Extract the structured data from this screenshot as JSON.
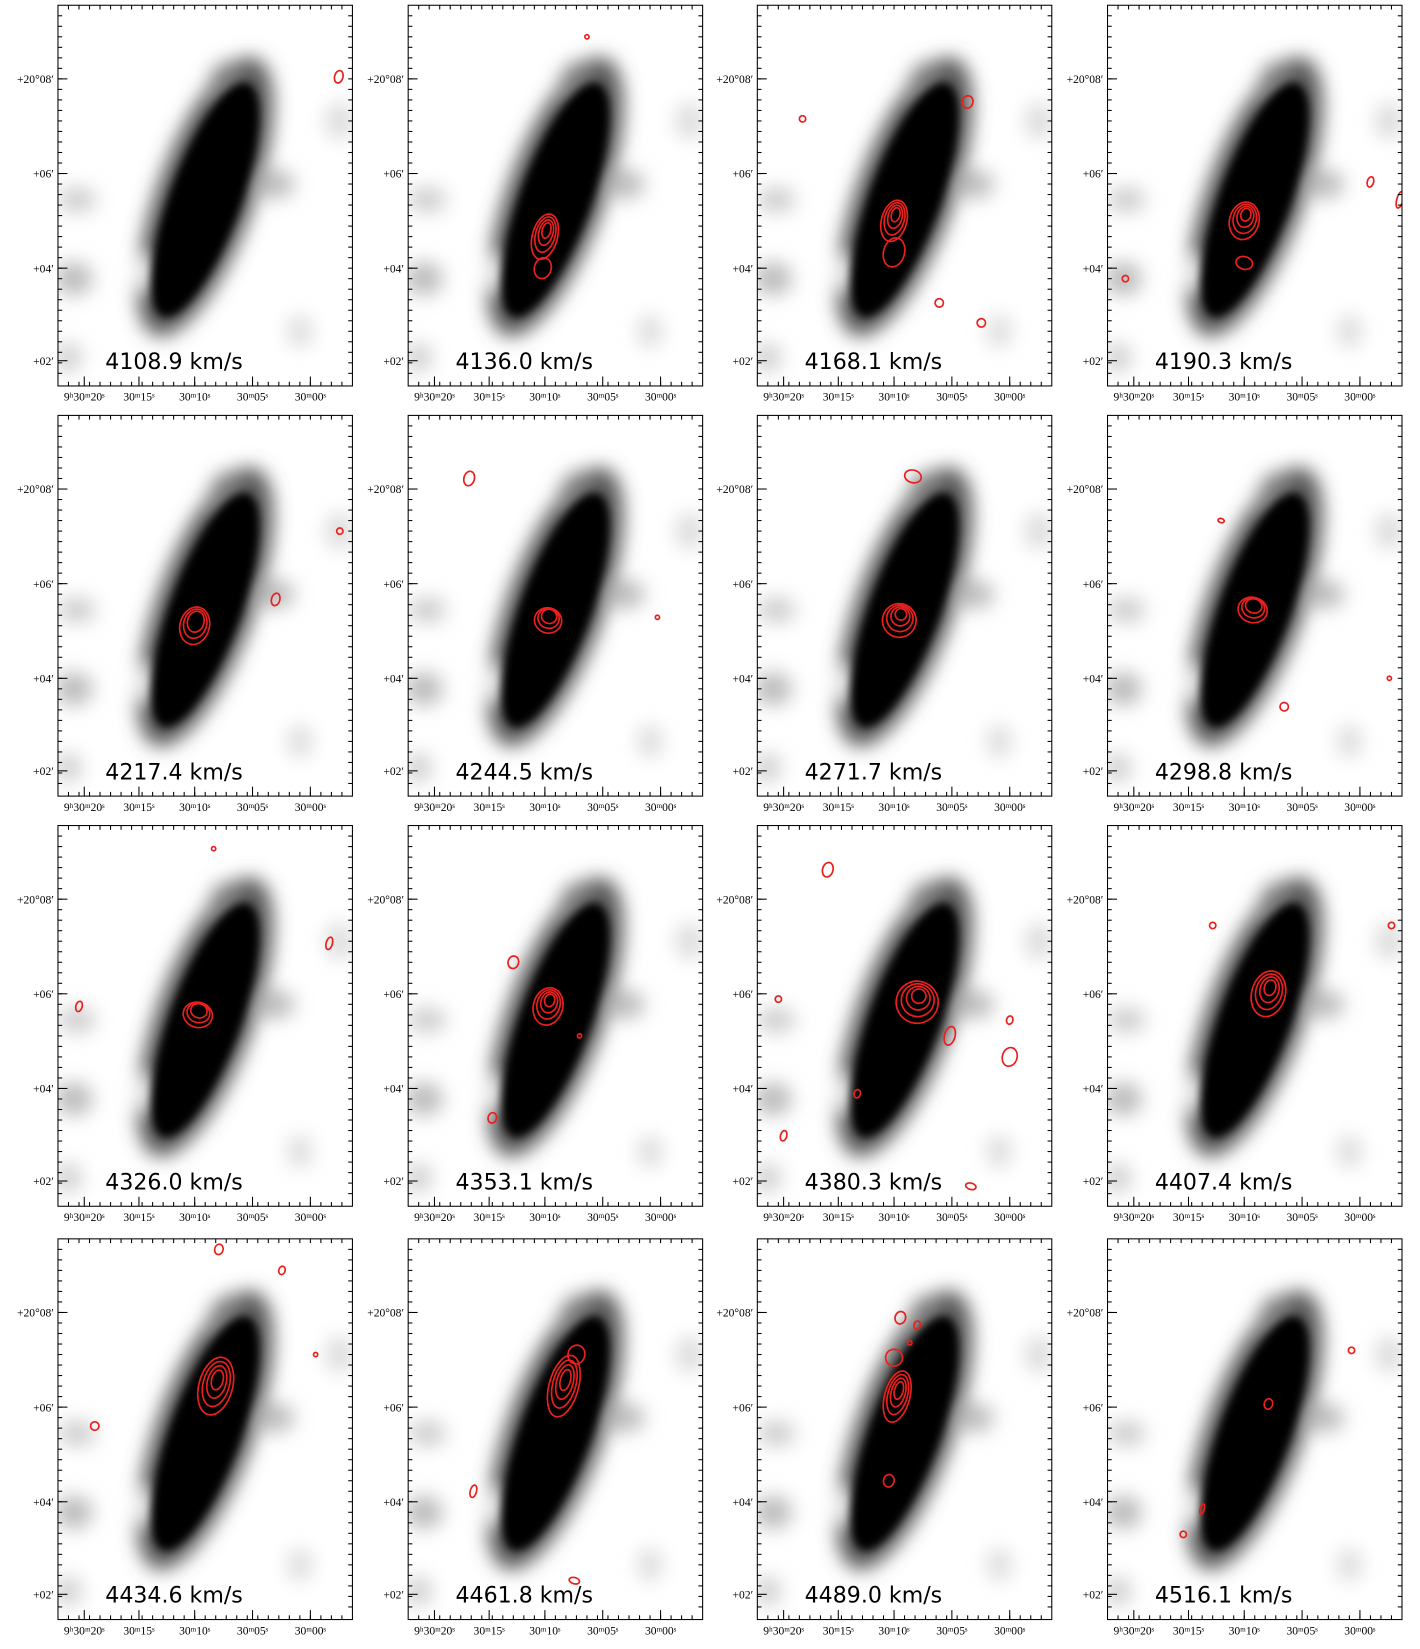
{
  "axes": {
    "x_ticks": [
      "9ʰ30ᵐ20ˢ",
      "30ᵐ15ˢ",
      "30ᵐ10ˢ",
      "30ᵐ05ˢ",
      "30ᵐ00ˢ"
    ],
    "y_ticks": [
      "+20°08′",
      "+06′",
      "+04′",
      "+02′"
    ]
  },
  "panels": [
    {
      "velocity": "4108.9 km/s"
    },
    {
      "velocity": "4136.0 km/s"
    },
    {
      "velocity": "4168.1 km/s"
    },
    {
      "velocity": "4190.3 km/s"
    },
    {
      "velocity": "4217.4 km/s"
    },
    {
      "velocity": "4244.5 km/s"
    },
    {
      "velocity": "4271.7 km/s"
    },
    {
      "velocity": "4298.8 km/s"
    },
    {
      "velocity": "4326.0 km/s"
    },
    {
      "velocity": "4353.1 km/s"
    },
    {
      "velocity": "4380.3 km/s"
    },
    {
      "velocity": "4407.4 km/s"
    },
    {
      "velocity": "4434.6 km/s"
    },
    {
      "velocity": "4461.8 km/s"
    },
    {
      "velocity": "4489.0 km/s"
    },
    {
      "velocity": "4516.1 km/s"
    }
  ]
}
